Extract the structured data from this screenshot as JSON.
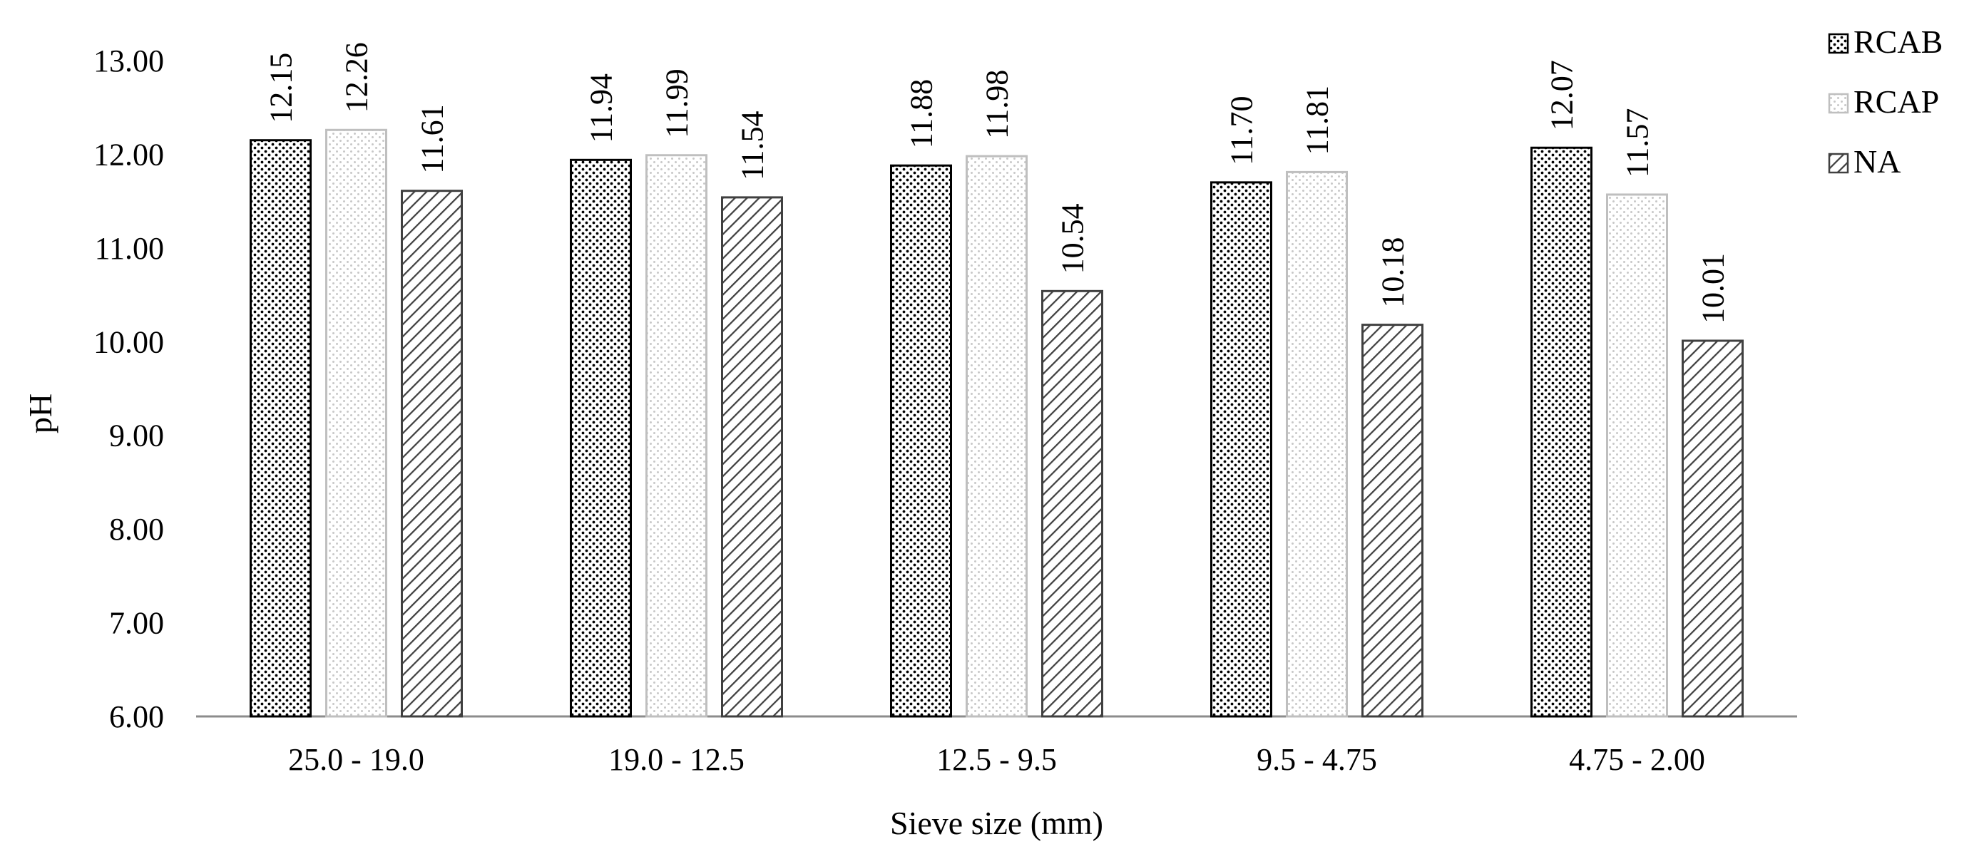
{
  "chart_data": {
    "type": "bar",
    "title": "",
    "xlabel": "Sieve size (mm)",
    "ylabel": "pH",
    "ylim": [
      6.0,
      13.0
    ],
    "yticks": [
      "6.00",
      "7.00",
      "8.00",
      "9.00",
      "10.00",
      "11.00",
      "12.00",
      "13.00"
    ],
    "grid": false,
    "legend_position": "top-right",
    "categories": [
      "25.0 - 19.0",
      "19.0 - 12.5",
      "12.5 - 9.5",
      "9.5 - 4.75",
      "4.75 - 2.00"
    ],
    "series": [
      {
        "name": "RCAB",
        "pattern": "dense-dots",
        "color": "#000000",
        "values": [
          12.15,
          11.94,
          11.88,
          11.7,
          12.07
        ],
        "labels": [
          "12.15",
          "11.94",
          "11.88",
          "11.70",
          "12.07"
        ]
      },
      {
        "name": "RCAP",
        "pattern": "light-dots",
        "color": "#bfbfbf",
        "values": [
          12.26,
          11.99,
          11.98,
          11.81,
          11.57
        ],
        "labels": [
          "12.26",
          "11.99",
          "11.98",
          "11.81",
          "11.57"
        ]
      },
      {
        "name": "NA",
        "pattern": "diagonal-hatch",
        "color": "#404040",
        "values": [
          11.61,
          11.54,
          10.54,
          10.18,
          10.01
        ],
        "labels": [
          "11.61",
          "11.54",
          "10.54",
          "10.18",
          "10.01"
        ]
      }
    ]
  }
}
